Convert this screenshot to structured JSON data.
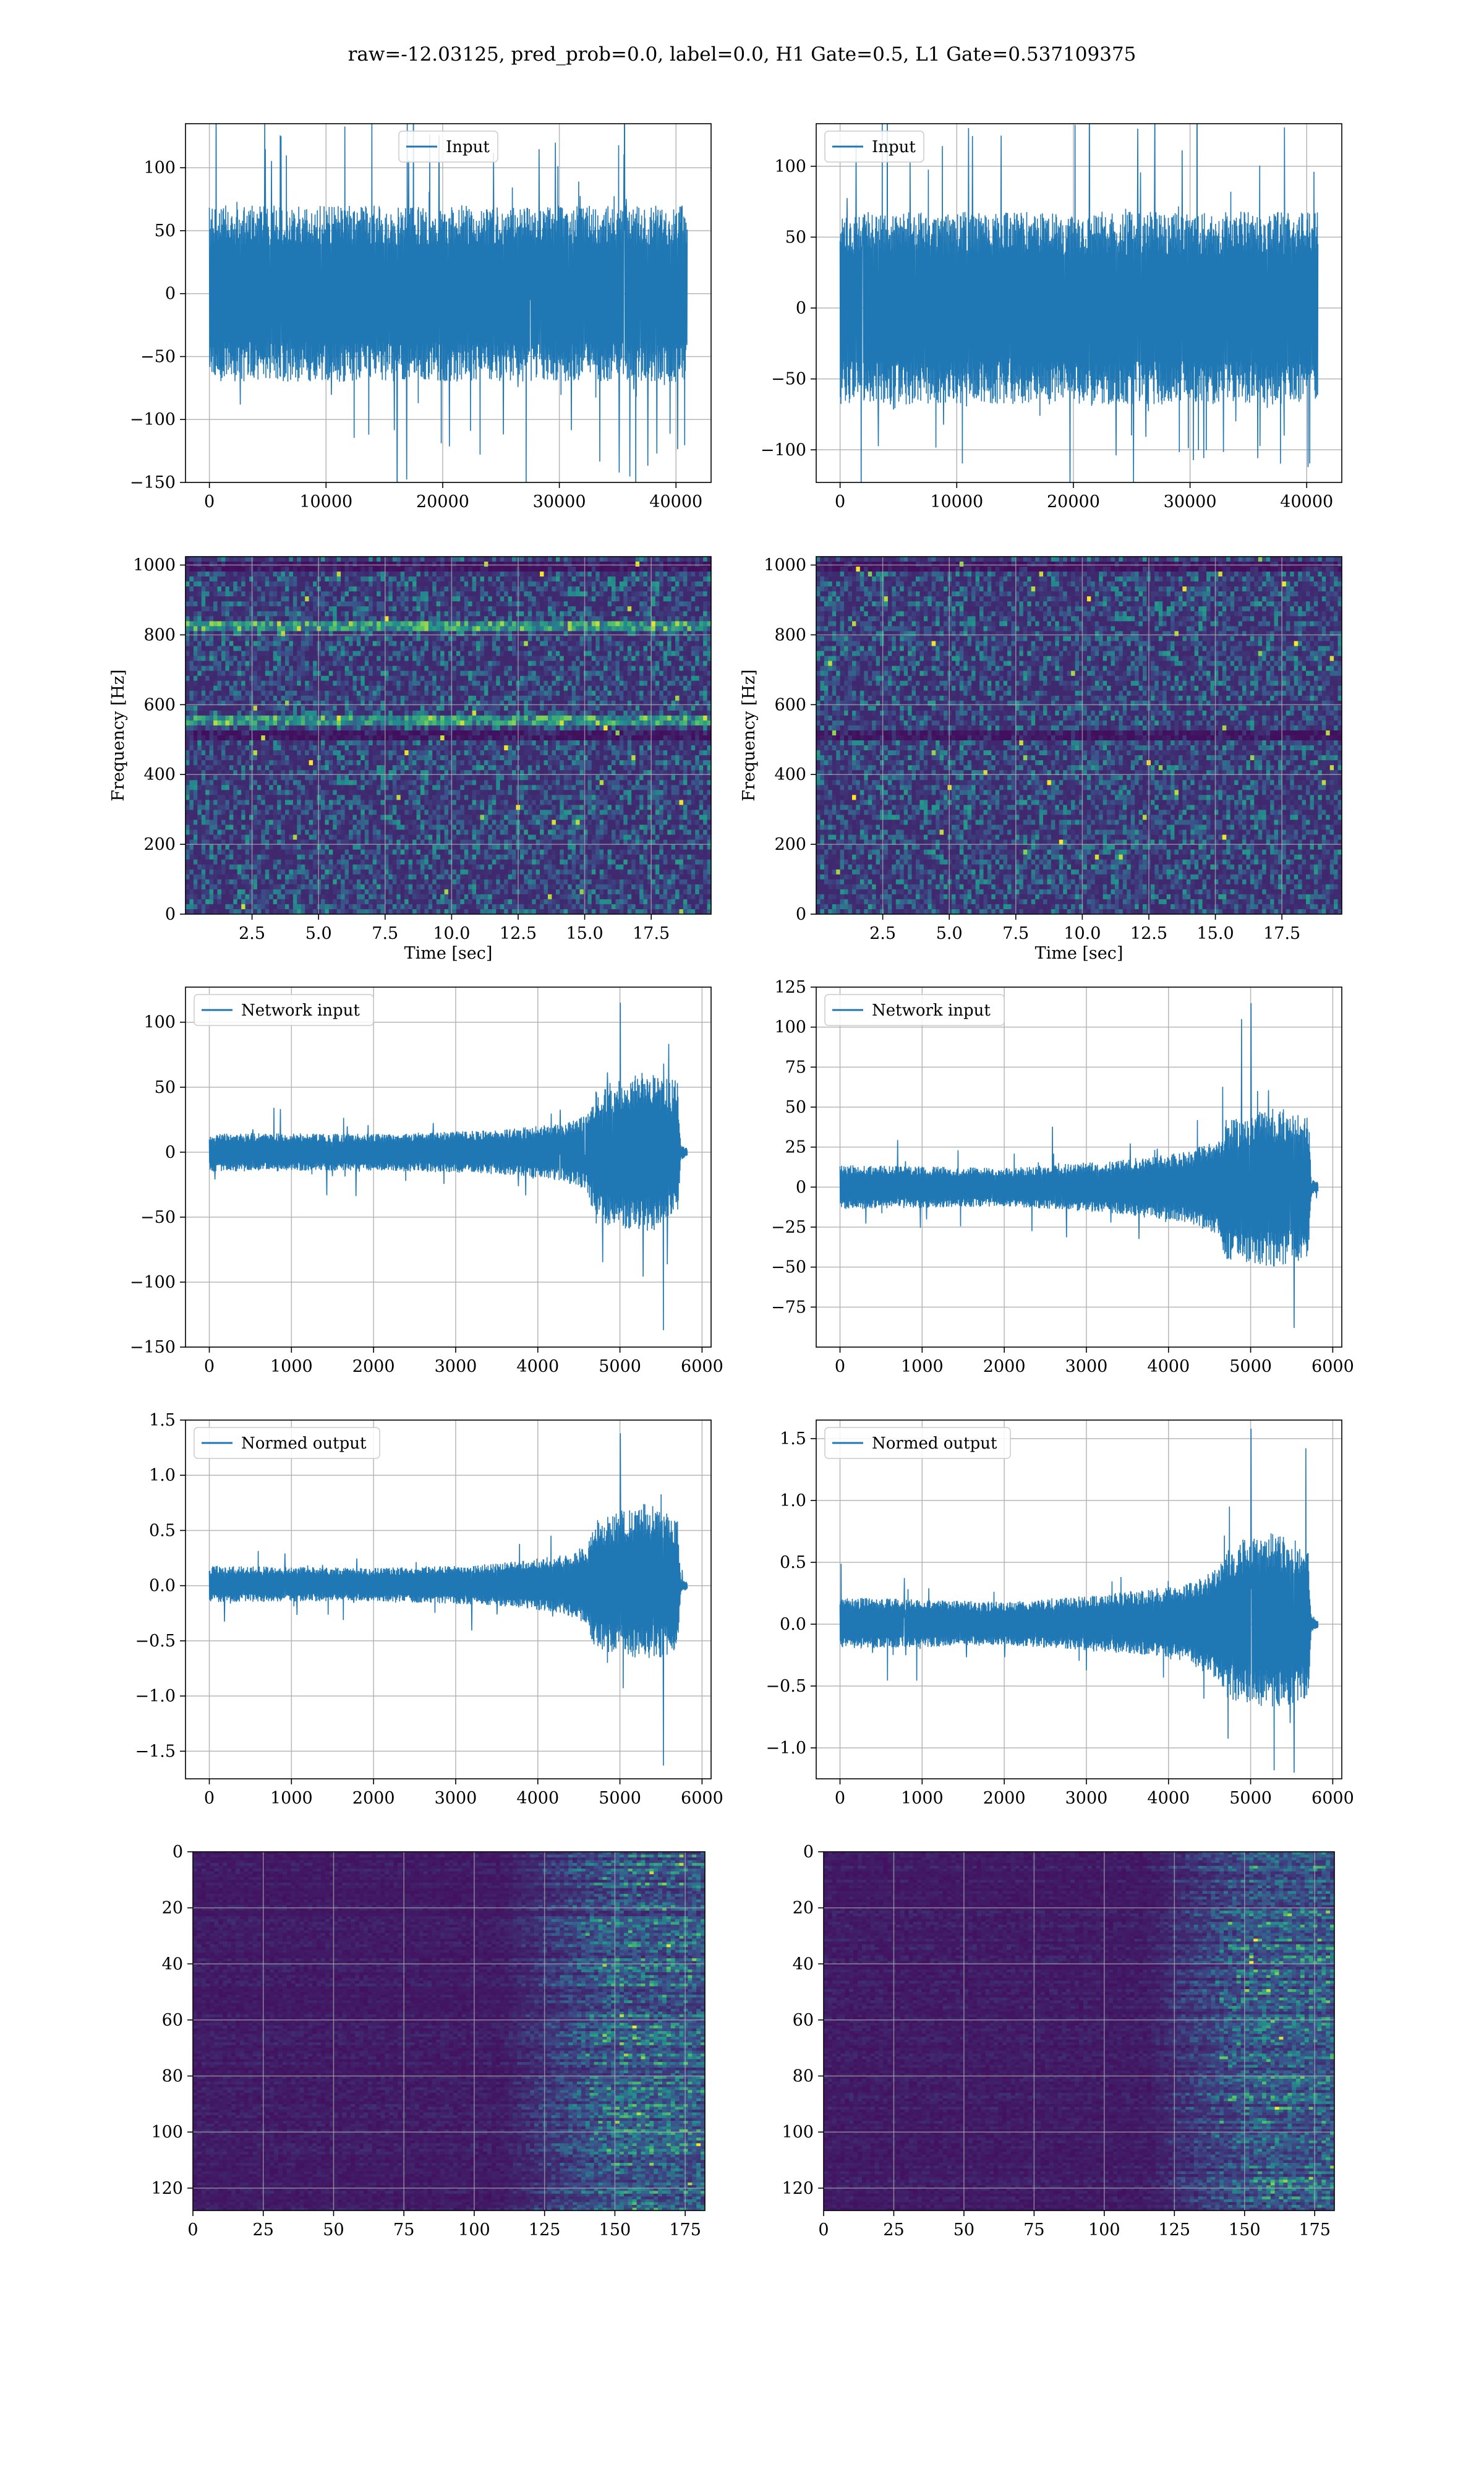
{
  "figure": {
    "suptitle": "raw=-12.03125, pred_prob=0.0, label=0.0, H1 Gate=0.5, L1 Gate=0.537109375",
    "line_color": "#1f77b4",
    "grid_color": "#b0b0b0",
    "colormap": "viridis"
  },
  "chart_data": [
    {
      "id": "input-left",
      "type": "line",
      "legend": [
        "Input"
      ],
      "legend_position": "upper center",
      "xlim": [
        -2048,
        43008
      ],
      "ylim": [
        -150,
        135
      ],
      "grid": true,
      "xticks": [
        0,
        10000,
        20000,
        30000,
        40000
      ],
      "xtick_labels": [
        "0",
        "10000",
        "20000",
        "30000",
        "40000"
      ],
      "yticks": [
        -150,
        -100,
        -50,
        0,
        50,
        100
      ],
      "ytick_labels": [
        "−150",
        "−100",
        "−50",
        "0",
        "50",
        "100"
      ],
      "series": [
        {
          "name": "Input",
          "x_range": [
            0,
            40960
          ],
          "envelope": [
            {
              "x": 0,
              "lo": -70,
              "hi": 70
            },
            {
              "x": 40960,
              "lo": -70,
              "hi": 70
            }
          ],
          "spikes_range": [
            -137,
            128
          ]
        }
      ]
    },
    {
      "id": "input-right",
      "type": "line",
      "legend": [
        "Input"
      ],
      "legend_position": "upper left",
      "xlim": [
        -2048,
        43008
      ],
      "ylim": [
        -123,
        130
      ],
      "grid": true,
      "xticks": [
        0,
        10000,
        20000,
        30000,
        40000
      ],
      "xtick_labels": [
        "0",
        "10000",
        "20000",
        "30000",
        "40000"
      ],
      "yticks": [
        -100,
        -50,
        0,
        50,
        100
      ],
      "ytick_labels": [
        "−100",
        "−50",
        "0",
        "50",
        "100"
      ],
      "series": [
        {
          "name": "Input",
          "x_range": [
            0,
            40960
          ],
          "envelope": [
            {
              "x": 0,
              "lo": -68,
              "hi": 68
            },
            {
              "x": 40960,
              "lo": -68,
              "hi": 68
            }
          ],
          "spikes_range": [
            -115,
            127
          ]
        }
      ]
    },
    {
      "id": "spectrogram-left",
      "type": "heatmap",
      "colormap": "viridis",
      "xlabel": "Time [sec]",
      "ylabel": "Frequency [Hz]",
      "xlim": [
        0,
        19.75
      ],
      "ylim": [
        0,
        1024
      ],
      "grid": true,
      "xticks": [
        2.5,
        5.0,
        7.5,
        10.0,
        12.5,
        15.0,
        17.5
      ],
      "xtick_labels": [
        "2.5",
        "5.0",
        "7.5",
        "10.0",
        "12.5",
        "15.0",
        "17.5"
      ],
      "yticks": [
        0,
        200,
        400,
        600,
        800,
        1000
      ],
      "ytick_labels": [
        "0",
        "200",
        "400",
        "600",
        "800",
        "1000"
      ],
      "bright_bands_hz": [
        830,
        555
      ],
      "dark_bands_hz": [
        512,
        1000
      ]
    },
    {
      "id": "spectrogram-right",
      "type": "heatmap",
      "colormap": "viridis",
      "xlabel": "Time [sec]",
      "ylabel": "Frequency [Hz]",
      "xlim": [
        0,
        19.75
      ],
      "ylim": [
        0,
        1024
      ],
      "grid": true,
      "xticks": [
        2.5,
        5.0,
        7.5,
        10.0,
        12.5,
        15.0,
        17.5
      ],
      "xtick_labels": [
        "2.5",
        "5.0",
        "7.5",
        "10.0",
        "12.5",
        "15.0",
        "17.5"
      ],
      "yticks": [
        0,
        200,
        400,
        600,
        800,
        1000
      ],
      "ytick_labels": [
        "0",
        "200",
        "400",
        "600",
        "800",
        "1000"
      ],
      "bright_bands_hz": [],
      "dark_bands_hz": [
        512,
        1000
      ]
    },
    {
      "id": "network-input-left",
      "type": "line",
      "legend": [
        "Network input"
      ],
      "legend_position": "upper left",
      "xlim": [
        -290,
        6110
      ],
      "ylim": [
        -150,
        127
      ],
      "grid": true,
      "xticks": [
        0,
        1000,
        2000,
        3000,
        4000,
        5000,
        6000
      ],
      "xtick_labels": [
        "0",
        "1000",
        "2000",
        "3000",
        "4000",
        "5000",
        "6000"
      ],
      "yticks": [
        -150,
        -100,
        -50,
        0,
        50,
        100
      ],
      "ytick_labels": [
        "−150",
        "−100",
        "−50",
        "0",
        "50",
        "100"
      ],
      "series": [
        {
          "name": "Network input",
          "x_range": [
            0,
            5820
          ],
          "envelope": [
            {
              "x": 0,
              "lo": -15,
              "hi": 15
            },
            {
              "x": 2000,
              "lo": -14,
              "hi": 14
            },
            {
              "x": 3500,
              "lo": -17,
              "hi": 17
            },
            {
              "x": 4300,
              "lo": -22,
              "hi": 22
            },
            {
              "x": 4600,
              "lo": -30,
              "hi": 30
            },
            {
              "x": 4700,
              "lo": -55,
              "hi": 50
            },
            {
              "x": 5300,
              "lo": -62,
              "hi": 62
            },
            {
              "x": 5700,
              "lo": -55,
              "hi": 55
            },
            {
              "x": 5740,
              "lo": -6,
              "hi": 6
            },
            {
              "x": 5820,
              "lo": -3,
              "hi": 3
            }
          ],
          "extremes": {
            "max": 115,
            "min": -137
          }
        }
      ]
    },
    {
      "id": "network-input-right",
      "type": "line",
      "legend": [
        "Network input"
      ],
      "legend_position": "upper left",
      "xlim": [
        -290,
        6110
      ],
      "ylim": [
        -100,
        125
      ],
      "grid": true,
      "xticks": [
        0,
        1000,
        2000,
        3000,
        4000,
        5000,
        6000
      ],
      "xtick_labels": [
        "0",
        "1000",
        "2000",
        "3000",
        "4000",
        "5000",
        "6000"
      ],
      "yticks": [
        -75,
        -50,
        -25,
        0,
        25,
        50,
        75,
        100,
        125
      ],
      "ytick_labels": [
        "−75",
        "−50",
        "−25",
        "0",
        "25",
        "50",
        "75",
        "100",
        "125"
      ],
      "series": [
        {
          "name": "Network input",
          "x_range": [
            0,
            5820
          ],
          "envelope": [
            {
              "x": 0,
              "lo": -14,
              "hi": 14
            },
            {
              "x": 2000,
              "lo": -12,
              "hi": 12
            },
            {
              "x": 3200,
              "lo": -16,
              "hi": 16
            },
            {
              "x": 4200,
              "lo": -22,
              "hi": 22
            },
            {
              "x": 4600,
              "lo": -30,
              "hi": 30
            },
            {
              "x": 4700,
              "lo": -45,
              "hi": 42
            },
            {
              "x": 5300,
              "lo": -50,
              "hi": 50
            },
            {
              "x": 5700,
              "lo": -45,
              "hi": 45
            },
            {
              "x": 5740,
              "lo": -5,
              "hi": 5
            },
            {
              "x": 5820,
              "lo": -3,
              "hi": 3
            }
          ],
          "extremes": {
            "max": 115,
            "min": -88
          }
        }
      ]
    },
    {
      "id": "normed-output-left",
      "type": "line",
      "legend": [
        "Normed output"
      ],
      "legend_position": "upper left",
      "xlim": [
        -290,
        6110
      ],
      "ylim": [
        -1.75,
        1.5
      ],
      "grid": true,
      "xticks": [
        0,
        1000,
        2000,
        3000,
        4000,
        5000,
        6000
      ],
      "xtick_labels": [
        "0",
        "1000",
        "2000",
        "3000",
        "4000",
        "5000",
        "6000"
      ],
      "yticks": [
        -1.5,
        -1.0,
        -0.5,
        0.0,
        0.5,
        1.0,
        1.5
      ],
      "ytick_labels": [
        "−1.5",
        "−1.0",
        "−0.5",
        "0.0",
        "0.5",
        "1.0",
        "1.5"
      ],
      "series": [
        {
          "name": "Normed output",
          "x_range": [
            0,
            5820
          ],
          "envelope": [
            {
              "x": 0,
              "lo": -0.15,
              "hi": 0.18
            },
            {
              "x": 2000,
              "lo": -0.14,
              "hi": 0.16
            },
            {
              "x": 3500,
              "lo": -0.18,
              "hi": 0.2
            },
            {
              "x": 4300,
              "lo": -0.25,
              "hi": 0.28
            },
            {
              "x": 4600,
              "lo": -0.35,
              "hi": 0.35
            },
            {
              "x": 4700,
              "lo": -0.6,
              "hi": 0.6
            },
            {
              "x": 5300,
              "lo": -0.7,
              "hi": 0.75
            },
            {
              "x": 5700,
              "lo": -0.6,
              "hi": 0.65
            },
            {
              "x": 5740,
              "lo": -0.07,
              "hi": 0.07
            },
            {
              "x": 5820,
              "lo": -0.03,
              "hi": 0.03
            }
          ],
          "extremes": {
            "max": 1.38,
            "min": -1.63
          }
        }
      ]
    },
    {
      "id": "normed-output-right",
      "type": "line",
      "legend": [
        "Normed output"
      ],
      "legend_position": "upper left",
      "xlim": [
        -290,
        6110
      ],
      "ylim": [
        -1.25,
        1.65
      ],
      "grid": true,
      "xticks": [
        0,
        1000,
        2000,
        3000,
        4000,
        5000,
        6000
      ],
      "xtick_labels": [
        "0",
        "1000",
        "2000",
        "3000",
        "4000",
        "5000",
        "6000"
      ],
      "yticks": [
        -1.0,
        -0.5,
        0.0,
        0.5,
        1.0,
        1.5
      ],
      "ytick_labels": [
        "−1.0",
        "−0.5",
        "0.0",
        "0.5",
        "1.0",
        "1.5"
      ],
      "series": [
        {
          "name": "Normed output",
          "x_range": [
            0,
            5820
          ],
          "envelope": [
            {
              "x": 0,
              "lo": -0.2,
              "hi": 0.22
            },
            {
              "x": 2000,
              "lo": -0.17,
              "hi": 0.18
            },
            {
              "x": 3200,
              "lo": -0.22,
              "hi": 0.24
            },
            {
              "x": 4200,
              "lo": -0.3,
              "hi": 0.32
            },
            {
              "x": 4600,
              "lo": -0.45,
              "hi": 0.45
            },
            {
              "x": 4700,
              "lo": -0.6,
              "hi": 0.65
            },
            {
              "x": 5300,
              "lo": -0.7,
              "hi": 0.75
            },
            {
              "x": 5700,
              "lo": -0.6,
              "hi": 0.65
            },
            {
              "x": 5740,
              "lo": -0.06,
              "hi": 0.06
            },
            {
              "x": 5820,
              "lo": -0.03,
              "hi": 0.03
            }
          ],
          "extremes": {
            "max": 1.58,
            "min": -1.2
          }
        }
      ]
    },
    {
      "id": "feature-map-left",
      "type": "heatmap",
      "colormap": "viridis",
      "xlim": [
        0,
        182
      ],
      "ylim": [
        128,
        0
      ],
      "grid": true,
      "xticks": [
        0,
        25,
        50,
        75,
        100,
        125,
        150,
        175
      ],
      "xtick_labels": [
        "0",
        "25",
        "50",
        "75",
        "100",
        "125",
        "150",
        "175"
      ],
      "yticks": [
        0,
        20,
        40,
        60,
        80,
        100,
        120
      ],
      "ytick_labels": [
        "0",
        "20",
        "40",
        "60",
        "80",
        "100",
        "120"
      ],
      "activity_onset_col": 110,
      "peak_region_cols": [
        140,
        180
      ]
    },
    {
      "id": "feature-map-right",
      "type": "heatmap",
      "colormap": "viridis",
      "xlim": [
        0,
        182
      ],
      "ylim": [
        128,
        0
      ],
      "grid": true,
      "xticks": [
        0,
        25,
        50,
        75,
        100,
        125,
        150,
        175
      ],
      "xtick_labels": [
        "0",
        "25",
        "50",
        "75",
        "100",
        "125",
        "150",
        "175"
      ],
      "yticks": [
        0,
        20,
        40,
        60,
        80,
        100,
        120
      ],
      "ytick_labels": [
        "0",
        "20",
        "40",
        "60",
        "80",
        "100",
        "120"
      ],
      "activity_onset_col": 115,
      "peak_region_cols": [
        140,
        180
      ]
    }
  ]
}
